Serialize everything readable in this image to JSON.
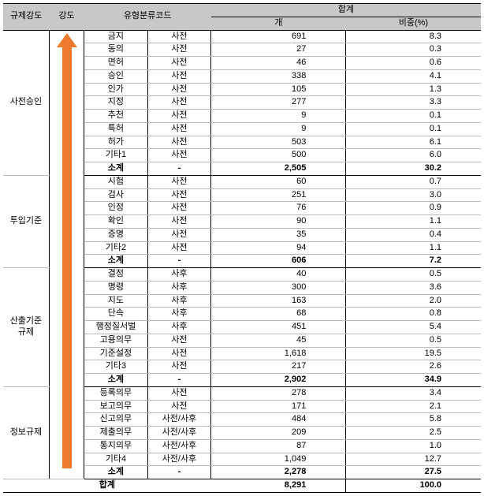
{
  "headers": {
    "c1": "규제강도",
    "c2": "강도",
    "c3": "유형분류코드",
    "totalHdr": "합계",
    "cnt": "개",
    "pct": "비중(%)"
  },
  "groups": [
    {
      "label": "사전승인",
      "rows": [
        {
          "t": "금지",
          "p": "사전",
          "n": "691",
          "r": "8.3"
        },
        {
          "t": "동의",
          "p": "사전",
          "n": "27",
          "r": "0.3"
        },
        {
          "t": "면허",
          "p": "사전",
          "n": "46",
          "r": "0.6"
        },
        {
          "t": "승인",
          "p": "사전",
          "n": "338",
          "r": "4.1"
        },
        {
          "t": "인가",
          "p": "사전",
          "n": "105",
          "r": "1.3"
        },
        {
          "t": "지정",
          "p": "사전",
          "n": "277",
          "r": "3.3"
        },
        {
          "t": "추천",
          "p": "사전",
          "n": "9",
          "r": "0.1"
        },
        {
          "t": "특허",
          "p": "사전",
          "n": "9",
          "r": "0.1"
        },
        {
          "t": "허가",
          "p": "사전",
          "n": "503",
          "r": "6.1"
        },
        {
          "t": "기타1",
          "p": "사전",
          "n": "500",
          "r": "6.0"
        }
      ],
      "sub": {
        "t": "소계",
        "p": "-",
        "n": "2,505",
        "r": "30.2"
      }
    },
    {
      "label": "투입기준",
      "rows": [
        {
          "t": "시험",
          "p": "사전",
          "n": "60",
          "r": "0.7"
        },
        {
          "t": "검사",
          "p": "사전",
          "n": "251",
          "r": "3.0"
        },
        {
          "t": "인정",
          "p": "사전",
          "n": "76",
          "r": "0.9"
        },
        {
          "t": "확인",
          "p": "사전",
          "n": "90",
          "r": "1.1"
        },
        {
          "t": "증명",
          "p": "사전",
          "n": "35",
          "r": "0.4"
        },
        {
          "t": "기타2",
          "p": "사전",
          "n": "94",
          "r": "1.1"
        }
      ],
      "sub": {
        "t": "소계",
        "p": "-",
        "n": "606",
        "r": "7.2"
      }
    },
    {
      "label": "산출기준\n규제",
      "rows": [
        {
          "t": "결정",
          "p": "사후",
          "n": "40",
          "r": "0.5"
        },
        {
          "t": "명령",
          "p": "사후",
          "n": "300",
          "r": "3.6"
        },
        {
          "t": "지도",
          "p": "사후",
          "n": "163",
          "r": "2.0"
        },
        {
          "t": "단속",
          "p": "사후",
          "n": "68",
          "r": "0.8"
        },
        {
          "t": "행정질서벌",
          "p": "사후",
          "n": "451",
          "r": "5.4"
        },
        {
          "t": "고용의무",
          "p": "사전",
          "n": "45",
          "r": "0.5"
        },
        {
          "t": "기준설정",
          "p": "사전",
          "n": "1,618",
          "r": "19.5"
        },
        {
          "t": "기타3",
          "p": "사전",
          "n": "217",
          "r": "2.6"
        }
      ],
      "sub": {
        "t": "소계",
        "p": "-",
        "n": "2,902",
        "r": "34.9"
      }
    },
    {
      "label": "정보규제",
      "rows": [
        {
          "t": "등록의무",
          "p": "사전",
          "n": "278",
          "r": "3.4"
        },
        {
          "t": "보고의무",
          "p": "사전",
          "n": "171",
          "r": "2.1"
        },
        {
          "t": "신고의무",
          "p": "사전/사후",
          "n": "484",
          "r": "5.8"
        },
        {
          "t": "제출의무",
          "p": "사전/사후",
          "n": "209",
          "r": "2.5"
        },
        {
          "t": "통지의무",
          "p": "사전/사후",
          "n": "87",
          "r": "1.0"
        },
        {
          "t": "기타4",
          "p": "사전/사후",
          "n": "1,049",
          "r": "12.7"
        }
      ],
      "sub": {
        "t": "소계",
        "p": "-",
        "n": "2,278",
        "r": "27.5"
      }
    }
  ],
  "total": {
    "label": "합계",
    "n": "8,291",
    "r": "100.0"
  }
}
